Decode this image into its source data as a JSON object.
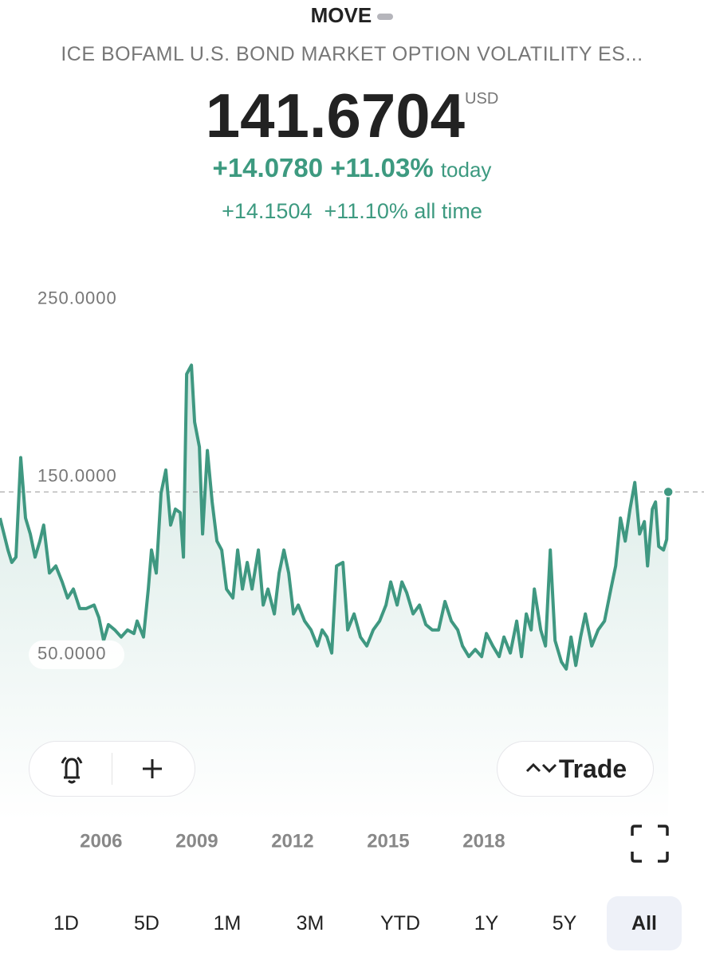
{
  "header": {
    "symbol": "MOVE",
    "name": "ICE BOFAML U.S. BOND MARKET OPTION VOLATILITY ES...",
    "price": "141.6704",
    "currency": "USD",
    "change_today": "+14.0780",
    "pct_today": "+11.03%",
    "today_label": "today",
    "change_all": "+14.1504",
    "pct_all": "+11.10%",
    "all_label": "all time"
  },
  "actions": {
    "trade": "Trade"
  },
  "ranges": {
    "items": [
      "1D",
      "5D",
      "1M",
      "3M",
      "YTD",
      "1Y",
      "5Y",
      "All"
    ],
    "selected": 7
  },
  "chart_data": {
    "type": "area",
    "color": "#3f9881",
    "x": [
      2002.83,
      2003.08,
      2003.2,
      2003.33,
      2003.48,
      2003.63,
      2003.78,
      2003.93,
      2004.08,
      2004.2,
      2004.38,
      2004.58,
      2004.78,
      2004.95,
      2005.13,
      2005.33,
      2005.53,
      2005.78,
      2005.93,
      2006.08,
      2006.23,
      2006.43,
      2006.63,
      2006.83,
      2007.03,
      2007.13,
      2007.33,
      2007.48,
      2007.58,
      2007.73,
      2007.88,
      2008.03,
      2008.18,
      2008.33,
      2008.48,
      2008.58,
      2008.68,
      2008.83,
      2008.93,
      2009.08,
      2009.18,
      2009.33,
      2009.48,
      2009.63,
      2009.78,
      2009.93,
      2010.13,
      2010.28,
      2010.43,
      2010.58,
      2010.73,
      2010.93,
      2011.08,
      2011.23,
      2011.43,
      2011.58,
      2011.73,
      2011.88,
      2012.03,
      2012.18,
      2012.38,
      2012.58,
      2012.78,
      2012.93,
      2013.08,
      2013.23,
      2013.38,
      2013.58,
      2013.73,
      2013.93,
      2014.13,
      2014.33,
      2014.53,
      2014.73,
      2014.93,
      2015.08,
      2015.28,
      2015.43,
      2015.58,
      2015.78,
      2015.98,
      2016.18,
      2016.38,
      2016.58,
      2016.78,
      2016.98,
      2017.18,
      2017.33,
      2017.53,
      2017.73,
      2017.93,
      2018.08,
      2018.28,
      2018.48,
      2018.63,
      2018.83,
      2019.03,
      2019.18,
      2019.33,
      2019.48,
      2019.58,
      2019.78,
      2019.93,
      2020.08,
      2020.23,
      2020.43,
      2020.58,
      2020.73,
      2020.88,
      2021.03,
      2021.18,
      2021.38,
      2021.58,
      2021.78,
      2021.98,
      2022.13,
      2022.28,
      2022.43,
      2022.58,
      2022.73,
      2022.88,
      2023.03,
      2023.13,
      2023.28,
      2023.38,
      2023.48,
      2023.63,
      2023.73,
      2023.78
    ],
    "values": [
      127,
      109,
      102,
      105,
      161,
      127,
      118,
      105,
      114,
      123,
      96,
      100,
      91,
      82,
      87,
      76,
      76,
      78,
      71,
      58,
      67,
      64,
      60,
      64,
      62,
      69,
      60,
      87,
      109,
      96,
      141,
      154,
      123,
      132,
      130,
      105,
      208,
      213,
      181,
      167,
      118,
      165,
      136,
      114,
      109,
      87,
      82,
      109,
      87,
      102,
      87,
      109,
      78,
      87,
      73,
      96,
      109,
      96,
      73,
      78,
      69,
      64,
      55,
      64,
      60,
      51,
      100,
      102,
      64,
      73,
      60,
      55,
      64,
      69,
      78,
      91,
      78,
      91,
      85,
      73,
      78,
      67,
      64,
      64,
      80,
      69,
      64,
      55,
      49,
      53,
      49,
      62,
      55,
      49,
      60,
      51,
      69,
      49,
      73,
      64,
      87,
      64,
      55,
      109,
      58,
      46,
      42,
      60,
      44,
      60,
      73,
      55,
      64,
      69,
      87,
      100,
      127,
      114,
      132,
      147,
      118,
      125,
      100,
      132,
      136,
      111,
      109,
      115,
      141.6704
    ],
    "xlim": [
      2002.83,
      2024.9
    ],
    "xticks": [
      2006,
      2009,
      2012,
      2015,
      2018
    ],
    "ylim": [
      -43.3,
      266.1
    ],
    "yticks": [
      {
        "value": 50,
        "label": "50.0000"
      },
      {
        "value": 150,
        "label": "150.0000"
      },
      {
        "value": 250,
        "label": "250.0000"
      }
    ]
  }
}
